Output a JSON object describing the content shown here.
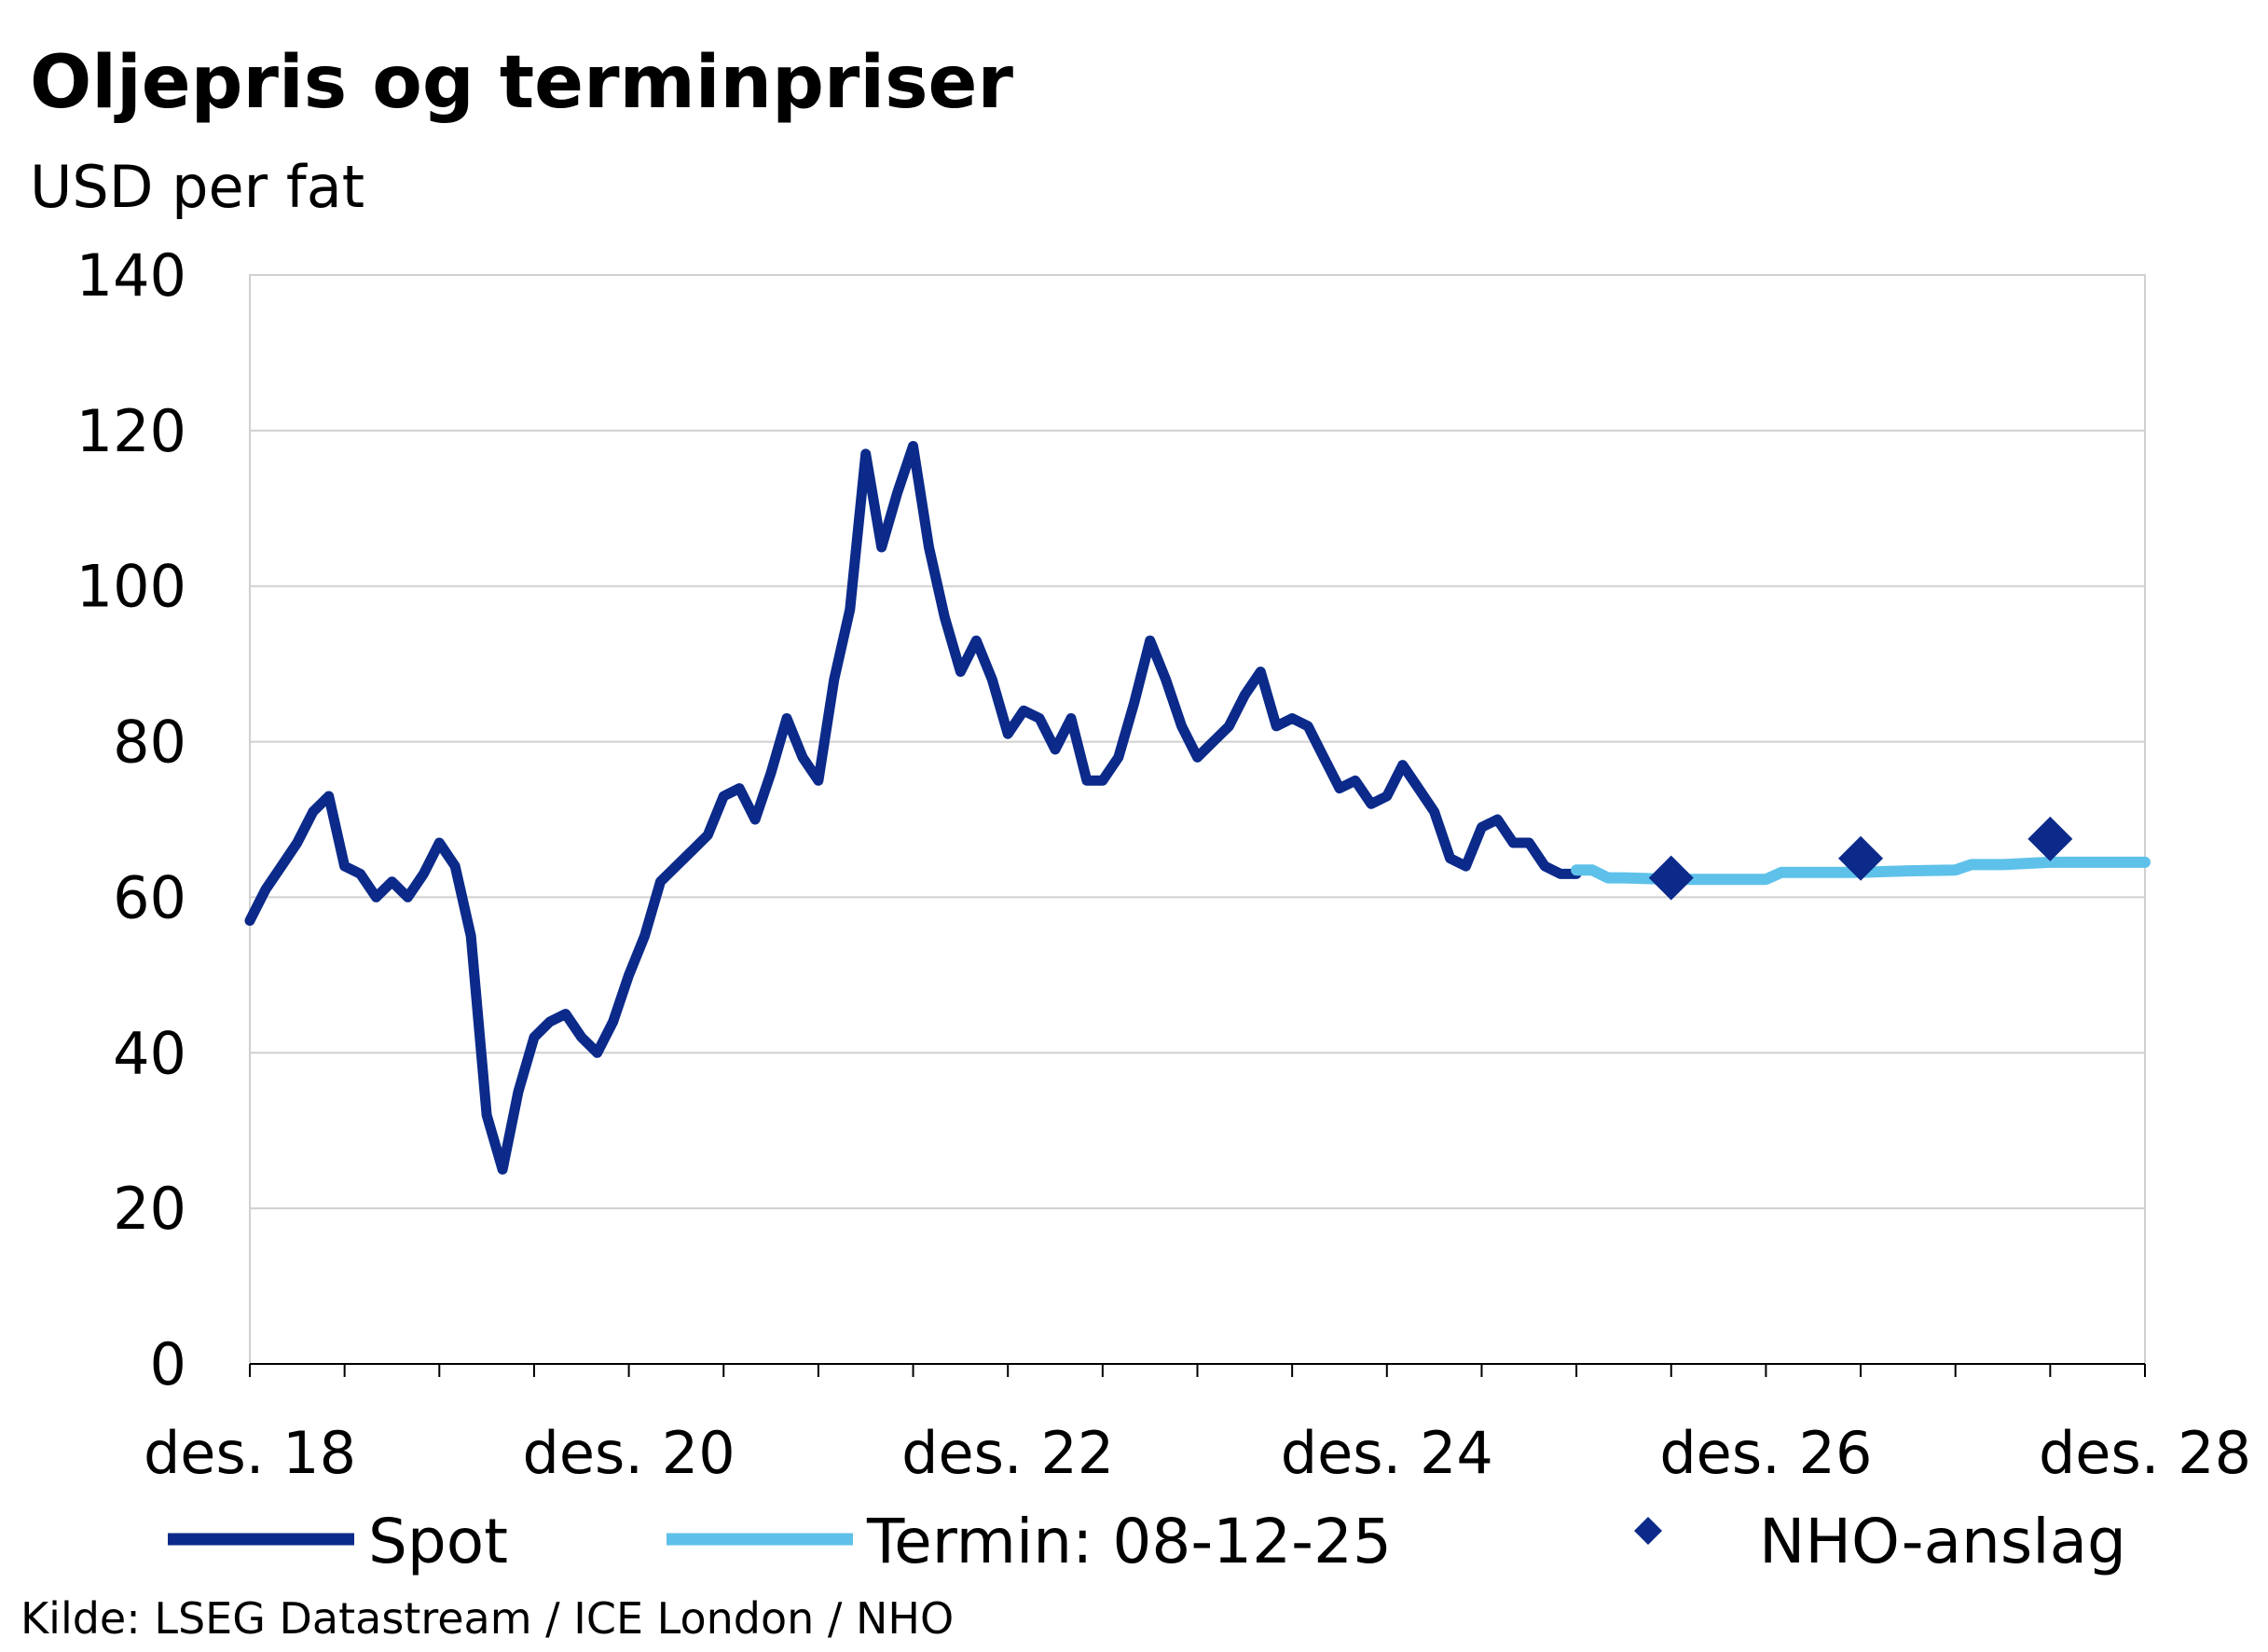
{
  "chart_data": {
    "type": "line",
    "title": "Oljepris og terminpriser",
    "subtitle": "USD per fat",
    "source": "Kilde: LSEG Datastream / ICE London / NHO",
    "ylim": [
      0,
      140
    ],
    "yticks": [
      "0",
      "20",
      "40",
      "60",
      "80",
      "100",
      "120",
      "140"
    ],
    "xlim": [
      "2018-12",
      "2028-12"
    ],
    "x_tick_labels": [
      "des. 18",
      "des. 20",
      "des. 22",
      "des. 24",
      "des. 26",
      "des. 28"
    ],
    "grid": "horizontal",
    "legend_position": "bottom",
    "colors": {
      "spot": "#0b2a8a",
      "termin": "#5ec1ea",
      "nho": "#0b2a8a",
      "grid": "#d0d0d0",
      "axis": "#000000"
    },
    "series": [
      {
        "name": "Spot",
        "type": "line",
        "x": [
          "2018-12",
          "2019-01",
          "2019-02",
          "2019-03",
          "2019-04",
          "2019-05",
          "2019-06",
          "2019-07",
          "2019-08",
          "2019-09",
          "2019-10",
          "2019-11",
          "2019-12",
          "2020-01",
          "2020-02",
          "2020-03",
          "2020-04",
          "2020-05",
          "2020-06",
          "2020-07",
          "2020-08",
          "2020-09",
          "2020-10",
          "2020-11",
          "2020-12",
          "2021-01",
          "2021-02",
          "2021-03",
          "2021-04",
          "2021-05",
          "2021-06",
          "2021-07",
          "2021-08",
          "2021-09",
          "2021-10",
          "2021-11",
          "2021-12",
          "2022-01",
          "2022-02",
          "2022-03",
          "2022-04",
          "2022-05",
          "2022-06",
          "2022-07",
          "2022-08",
          "2022-09",
          "2022-10",
          "2022-11",
          "2022-12",
          "2023-01",
          "2023-02",
          "2023-03",
          "2023-04",
          "2023-05",
          "2023-06",
          "2023-07",
          "2023-08",
          "2023-09",
          "2023-10",
          "2023-11",
          "2023-12",
          "2024-01",
          "2024-02",
          "2024-03",
          "2024-04",
          "2024-05",
          "2024-06",
          "2024-07",
          "2024-08",
          "2024-09",
          "2024-10",
          "2024-11",
          "2024-12",
          "2025-01",
          "2025-02",
          "2025-03",
          "2025-04",
          "2025-05",
          "2025-06",
          "2025-07",
          "2025-08",
          "2025-09",
          "2025-10",
          "2025-11",
          "2025-12"
        ],
        "values": [
          57,
          61,
          64,
          67,
          71,
          73,
          64,
          63,
          60,
          62,
          60,
          63,
          67,
          64,
          55,
          32,
          25,
          35,
          42,
          44,
          45,
          42,
          40,
          44,
          50,
          55,
          62,
          64,
          66,
          68,
          73,
          74,
          70,
          76,
          83,
          78,
          75,
          88,
          97,
          117,
          105,
          112,
          118,
          105,
          96,
          89,
          93,
          88,
          81,
          84,
          83,
          79,
          83,
          75,
          75,
          78,
          85,
          93,
          88,
          82,
          78,
          80,
          82,
          86,
          89,
          82,
          83,
          82,
          78,
          74,
          75,
          72,
          73,
          77,
          74,
          71,
          65,
          64,
          69,
          70,
          67,
          67,
          64,
          63,
          63
        ]
      },
      {
        "name": "Termin: 08-12-25",
        "type": "line",
        "x": [
          "2025-12",
          "2026-01",
          "2026-02",
          "2026-03",
          "2026-06",
          "2026-09",
          "2026-12",
          "2027-01",
          "2027-03",
          "2027-06",
          "2027-09",
          "2027-12",
          "2028-01",
          "2028-03",
          "2028-06",
          "2028-09",
          "2028-12"
        ],
        "values": [
          63.5,
          63.5,
          62.5,
          62.5,
          62.3,
          62.3,
          62.3,
          63.2,
          63.2,
          63.2,
          63.4,
          63.5,
          64.2,
          64.2,
          64.5,
          64.5,
          64.5
        ]
      },
      {
        "name": "NHO-anslag",
        "type": "scatter",
        "x": [
          "2026-06",
          "2027-06",
          "2028-06"
        ],
        "values": [
          62.5,
          65,
          67.5
        ]
      }
    ]
  },
  "legend": [
    {
      "label": "Spot",
      "kind": "line",
      "series": 0
    },
    {
      "label": "Termin: 08-12-25",
      "kind": "line",
      "series": 1
    },
    {
      "label": "NHO-anslag",
      "kind": "marker",
      "series": 2
    }
  ]
}
